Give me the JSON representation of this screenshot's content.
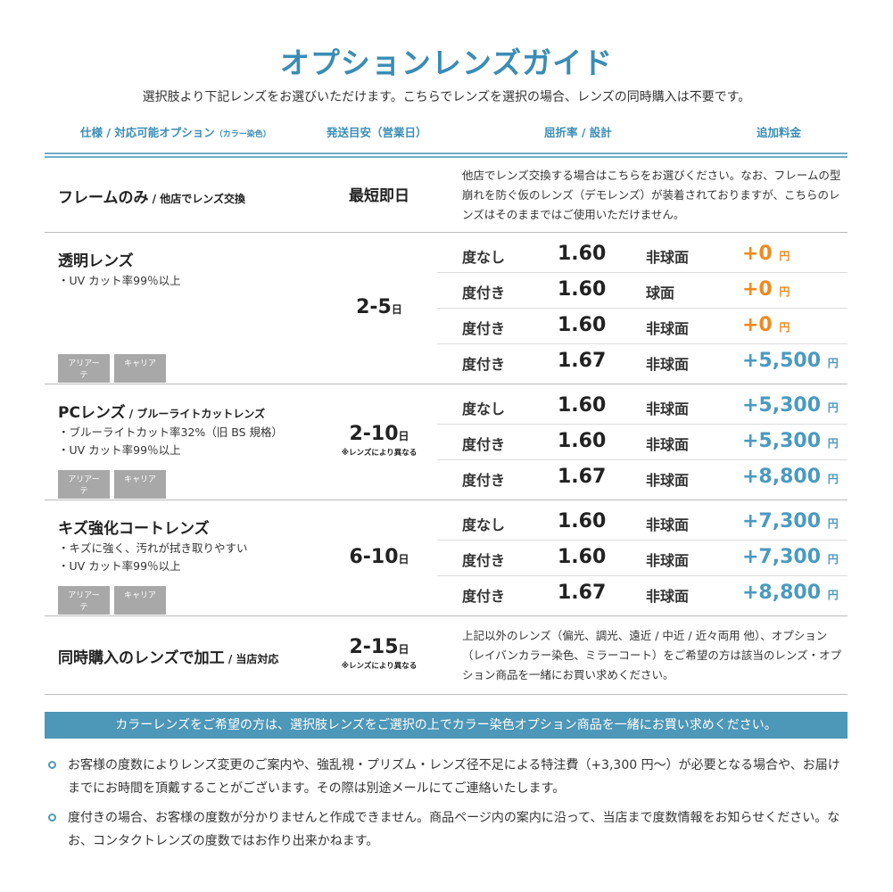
{
  "title": "オプションレンズガイド",
  "subtitle": "選択肢より下記レンズをお選びいただけます。こちらでレンズを選択の場合、レンズの同時購入は不要です。",
  "headers": {
    "spec": "仕様 / 対応可能オプション",
    "spec_note": "（カラー染色）",
    "days": "発送目安（営業日）",
    "index": "屈折率 / 設計",
    "price": "追加料金"
  },
  "colors": {
    "accent": "#3a8db5",
    "orange": "#f08a1e",
    "banner": "#4d97b8"
  },
  "sections": [
    {
      "name": "フレームのみ",
      "name_sub": " / 他店でレンズ交換",
      "days": "最短即日",
      "desc": "他店でレンズ交換する場合はこちらをお選びください。なお、フレームの型崩れを防ぐ仮のレンズ（デモレンズ）が装着されておりますが、こちらのレンズはそのままではご使用いただけません。"
    },
    {
      "name": "透明レンズ",
      "bullets": [
        "・UV カット率99％以上"
      ],
      "tags": [
        "アリアーテ",
        "キャリア"
      ],
      "days": "2-5",
      "unit": "日",
      "rows": [
        {
          "type": "度なし",
          "index": "1.60",
          "design": "非球面",
          "price": "+0",
          "yen": "円",
          "color": "orange"
        },
        {
          "type": "度付き",
          "index": "1.60",
          "design": "球面",
          "price": "+0",
          "yen": "円",
          "color": "orange"
        },
        {
          "type": "度付き",
          "index": "1.60",
          "design": "非球面",
          "price": "+0",
          "yen": "円",
          "color": "orange"
        },
        {
          "type": "度付き",
          "index": "1.67",
          "design": "非球面",
          "price": "+5,500",
          "yen": "円",
          "color": "blue"
        }
      ]
    },
    {
      "name": "PCレンズ",
      "name_sub": " / ブルーライトカットレンズ",
      "bullets": [
        "・ブルーライトカット率32%（旧 BS 規格）",
        "・UV カット率99％以上"
      ],
      "tags": [
        "アリアーテ",
        "キャリア"
      ],
      "days": "2-10",
      "unit": "日",
      "days_note": "※レンズにより異なる",
      "rows": [
        {
          "type": "度なし",
          "index": "1.60",
          "design": "非球面",
          "price": "+5,300",
          "yen": "円",
          "color": "blue"
        },
        {
          "type": "度付き",
          "index": "1.60",
          "design": "非球面",
          "price": "+5,300",
          "yen": "円",
          "color": "blue"
        },
        {
          "type": "度付き",
          "index": "1.67",
          "design": "非球面",
          "price": "+8,800",
          "yen": "円",
          "color": "blue"
        }
      ]
    },
    {
      "name": "キズ強化コートレンズ",
      "bullets": [
        "・キズに強く、汚れが拭き取りやすい",
        "・UV カット率99％以上"
      ],
      "tags": [
        "アリアーテ",
        "キャリア"
      ],
      "days": "6-10",
      "unit": "日",
      "rows": [
        {
          "type": "度なし",
          "index": "1.60",
          "design": "非球面",
          "price": "+7,300",
          "yen": "円",
          "color": "blue"
        },
        {
          "type": "度付き",
          "index": "1.60",
          "design": "非球面",
          "price": "+7,300",
          "yen": "円",
          "color": "blue"
        },
        {
          "type": "度付き",
          "index": "1.67",
          "design": "非球面",
          "price": "+8,800",
          "yen": "円",
          "color": "blue"
        }
      ]
    },
    {
      "name": "同時購入のレンズで加工",
      "name_sub": " / 当店対応",
      "days": "2-15",
      "unit": "日",
      "days_note": "※レンズにより異なる",
      "desc": "上記以外のレンズ（偏光、調光、遠近 / 中近 / 近々両用 他）、オプション（レイバンカラー染色、ミラーコート）をご希望の方は該当のレンズ・オプション商品を一緒にお買い求めください。"
    }
  ],
  "banner": "カラーレンズをご希望の方は、選択肢レンズをご選択の上でカラー染色オプション商品を一緒にお買い求めください。",
  "notes": [
    "お客様の度数によりレンズ変更のご案内や、強乱視・プリズム・レンズ径不足による特注費（+3,300 円〜）が必要となる場合や、お届けまでにお時間を頂戴することがございます。その際は別途メールにてご連絡いたします。",
    "度付きの場合、お客様の度数が分かりませんと作成できません。商品ページ内の案内に沿って、当店まで度数情報をお知らせください。なお、コンタクトレンズの度数ではお作り出来かねます。"
  ]
}
